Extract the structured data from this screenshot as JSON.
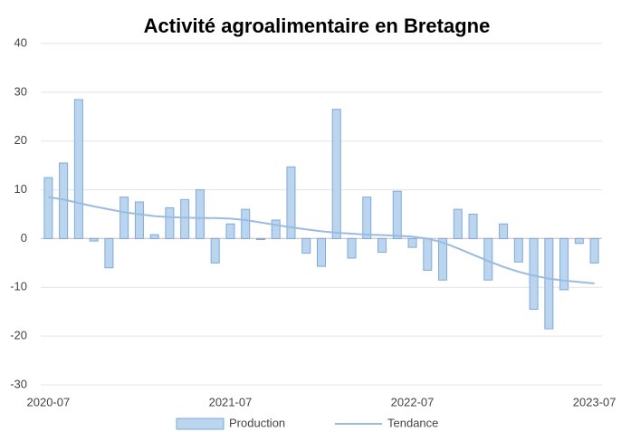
{
  "chart_data": {
    "type": "bar",
    "title": "Activité agroalimentaire en Bretagne",
    "categories": [
      "2020-07",
      null,
      null,
      null,
      null,
      null,
      null,
      null,
      null,
      null,
      null,
      null,
      "2021-07",
      null,
      null,
      null,
      null,
      null,
      null,
      null,
      null,
      null,
      null,
      null,
      "2022-07",
      null,
      null,
      null,
      null,
      null,
      null,
      null,
      null,
      null,
      null,
      null,
      "2023-07"
    ],
    "series": [
      {
        "name": "Production",
        "type": "bar",
        "color": "#bcd5ee",
        "edge": "#7fa9dc",
        "values": [
          12.5,
          15.5,
          28.5,
          -0.5,
          -6,
          8.5,
          7.5,
          0.8,
          6.3,
          8,
          10,
          -5,
          3,
          6,
          -0.2,
          3.8,
          14.7,
          -3,
          -5.7,
          26.5,
          -4,
          8.5,
          -2.8,
          9.7,
          -1.8,
          -6.5,
          -8.5,
          6,
          5,
          -8.5,
          3,
          -4.8,
          -14.5,
          -18.5,
          -10.5,
          -1,
          -5
        ]
      },
      {
        "name": "Tendance",
        "type": "line",
        "color": "#9bbbe0",
        "values": [
          8.5,
          8,
          7.3,
          6.6,
          6,
          5.4,
          5,
          4.6,
          4.4,
          4.3,
          4.2,
          4.2,
          4.1,
          3.8,
          3.3,
          2.8,
          2.3,
          1.9,
          1.5,
          1.2,
          1,
          0.8,
          0.7,
          0.6,
          0.4,
          0,
          -0.8,
          -2,
          -3.3,
          -4.6,
          -5.8,
          -6.8,
          -7.6,
          -8.2,
          -8.6,
          -8.9,
          -9.2
        ]
      }
    ],
    "ylim": [
      -30,
      40
    ],
    "yticks": [
      -30,
      -20,
      -10,
      0,
      10,
      20,
      30,
      40
    ],
    "grid": true,
    "legend": "bottom"
  }
}
